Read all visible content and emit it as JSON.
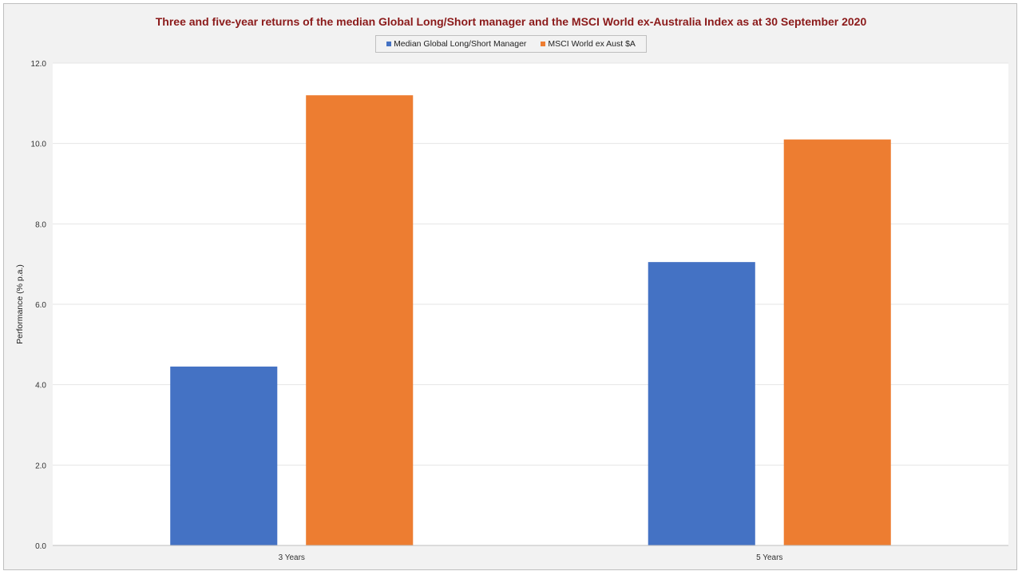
{
  "chart_data": {
    "type": "bar",
    "title": "Three and five-year returns  of the median Global Long/Short manager and the MSCI World ex-Australia Index as at 30 September 2020",
    "categories": [
      "3 Years",
      "5 Years"
    ],
    "series": [
      {
        "name": "Median Global Long/Short Manager",
        "values": [
          4.45,
          7.05
        ],
        "color": "#4472c4"
      },
      {
        "name": "MSCI World ex Aust $A",
        "values": [
          11.2,
          10.1
        ],
        "color": "#ed7d31"
      }
    ],
    "xlabel": "",
    "ylabel": "Performance  (% p.a.)",
    "ylim": [
      0,
      12
    ],
    "yticks": [
      "0.0",
      "2.0",
      "4.0",
      "6.0",
      "8.0",
      "10.0",
      "12.0"
    ],
    "grid": true,
    "legend_position": "top-center"
  }
}
